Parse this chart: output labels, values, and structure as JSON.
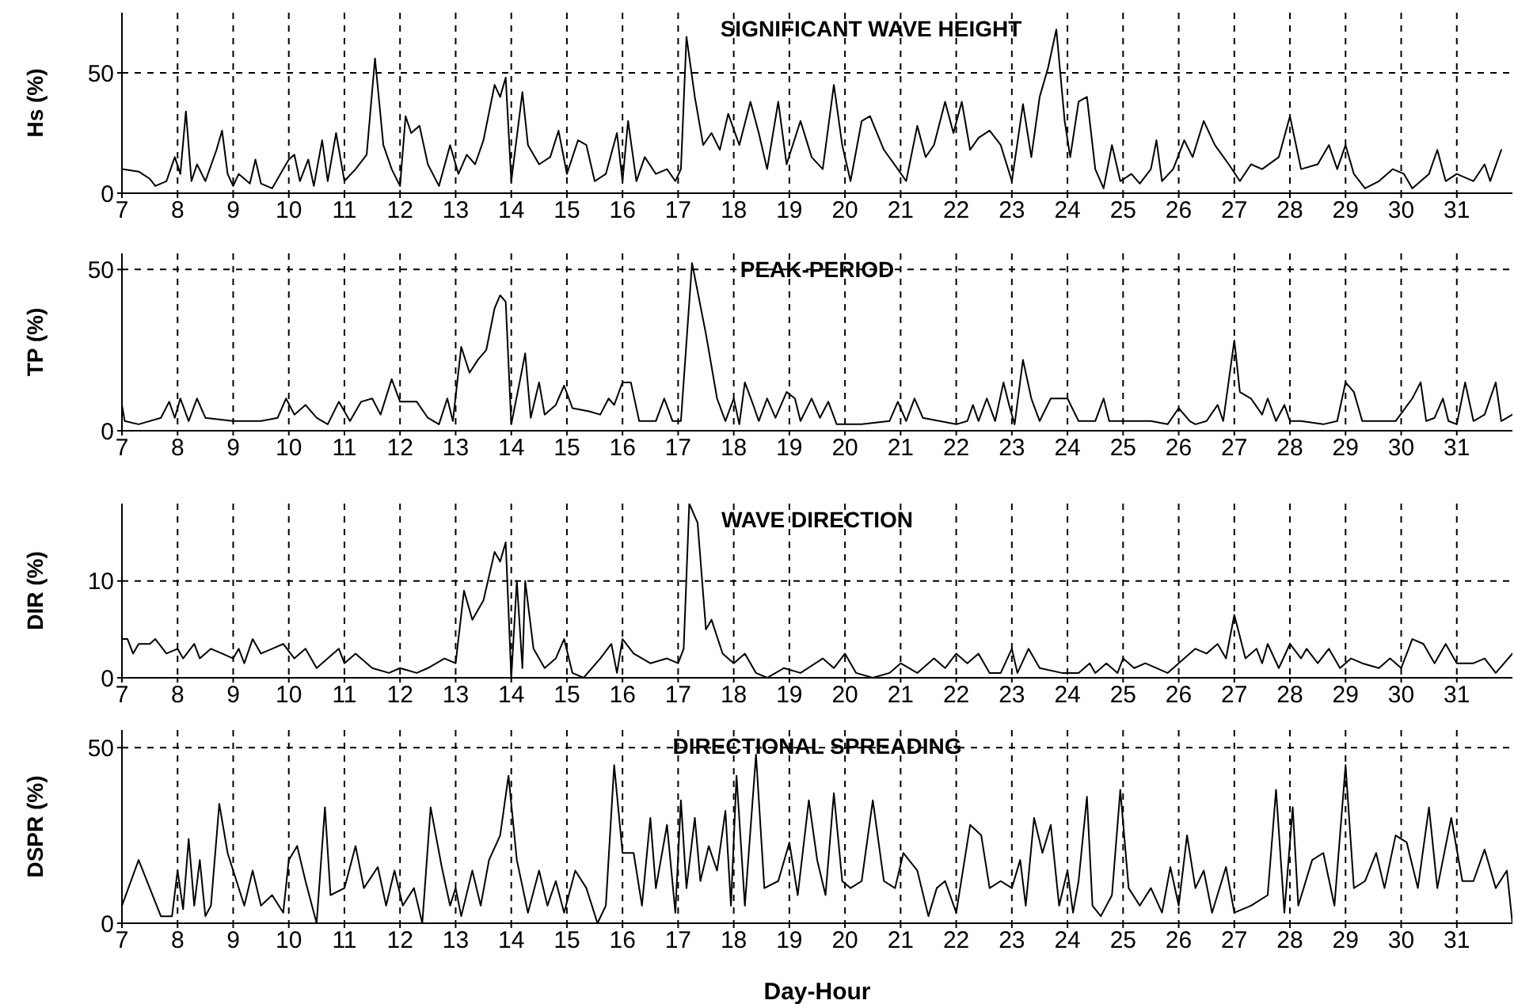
{
  "chart_data": [
    {
      "type": "line",
      "title": "SIGNIFICANT WAVE HEIGHT",
      "ylabel": "Hs (%)",
      "color": "#000000",
      "grid": true,
      "marker": "none",
      "xlim": [
        7,
        32
      ],
      "xticks": [
        7,
        8,
        9,
        10,
        11,
        12,
        13,
        14,
        15,
        16,
        17,
        18,
        19,
        20,
        21,
        22,
        23,
        24,
        25,
        26,
        27,
        28,
        29,
        30,
        31
      ],
      "ylim": [
        0,
        75
      ],
      "yticks": [
        0,
        50
      ],
      "x": [
        7.0,
        7.3,
        7.5,
        7.6,
        7.8,
        7.95,
        8.05,
        8.15,
        8.25,
        8.35,
        8.5,
        8.7,
        8.8,
        8.9,
        9.0,
        9.1,
        9.3,
        9.4,
        9.5,
        9.7,
        9.9,
        10.0,
        10.1,
        10.2,
        10.35,
        10.45,
        10.6,
        10.7,
        10.85,
        11.0,
        11.2,
        11.4,
        11.55,
        11.7,
        11.85,
        12.0,
        12.1,
        12.2,
        12.35,
        12.5,
        12.7,
        12.9,
        13.05,
        13.2,
        13.35,
        13.5,
        13.7,
        13.8,
        13.9,
        14.0,
        14.2,
        14.3,
        14.5,
        14.7,
        14.85,
        15.0,
        15.2,
        15.35,
        15.5,
        15.7,
        15.9,
        16.0,
        16.1,
        16.25,
        16.4,
        16.6,
        16.8,
        16.95,
        17.05,
        17.15,
        17.3,
        17.45,
        17.6,
        17.75,
        17.9,
        18.1,
        18.3,
        18.45,
        18.6,
        18.8,
        18.95,
        19.2,
        19.4,
        19.6,
        19.8,
        19.95,
        20.1,
        20.3,
        20.45,
        20.7,
        20.95,
        21.1,
        21.3,
        21.45,
        21.6,
        21.8,
        21.95,
        22.1,
        22.25,
        22.4,
        22.6,
        22.8,
        23.0,
        23.2,
        23.35,
        23.5,
        23.65,
        23.8,
        23.95,
        24.05,
        24.2,
        24.35,
        24.5,
        24.65,
        24.8,
        24.95,
        25.15,
        25.3,
        25.5,
        25.6,
        25.7,
        25.9,
        26.1,
        26.25,
        26.45,
        26.65,
        26.9,
        27.1,
        27.3,
        27.5,
        27.8,
        28.0,
        28.2,
        28.5,
        28.7,
        28.85,
        29.0,
        29.15,
        29.35,
        29.6,
        29.85,
        30.05,
        30.2,
        30.5,
        30.65,
        30.8,
        31.0,
        31.3,
        31.5,
        31.6,
        31.8
      ],
      "values": [
        10,
        9,
        6,
        3,
        5,
        15,
        8,
        34,
        5,
        12,
        5,
        18,
        26,
        8,
        3,
        8,
        4,
        14,
        4,
        2,
        10,
        14,
        16,
        5,
        14,
        3,
        22,
        5,
        25,
        5,
        10,
        16,
        56,
        20,
        10,
        3,
        32,
        25,
        28,
        12,
        3,
        20,
        8,
        16,
        12,
        22,
        45,
        40,
        48,
        5,
        42,
        20,
        12,
        15,
        26,
        8,
        22,
        20,
        5,
        8,
        25,
        5,
        30,
        5,
        15,
        8,
        10,
        5,
        10,
        65,
        40,
        20,
        25,
        18,
        33,
        20,
        38,
        25,
        10,
        38,
        12,
        30,
        15,
        10,
        45,
        20,
        5,
        30,
        32,
        18,
        10,
        5,
        28,
        15,
        20,
        38,
        25,
        38,
        18,
        23,
        26,
        20,
        5,
        37,
        15,
        40,
        52,
        68,
        30,
        15,
        38,
        40,
        10,
        2,
        20,
        5,
        8,
        4,
        10,
        22,
        5,
        10,
        22,
        15,
        30,
        20,
        12,
        5,
        12,
        10,
        15,
        32,
        10,
        12,
        20,
        10,
        20,
        8,
        2,
        5,
        10,
        8,
        2,
        8,
        18,
        5,
        8,
        5,
        12,
        5,
        18
      ]
    },
    {
      "type": "line",
      "title": "PEAK-PERIOD",
      "ylabel": "TP (%)",
      "color": "#000000",
      "grid": true,
      "marker": "none",
      "xlim": [
        7,
        32
      ],
      "xticks": [
        7,
        8,
        9,
        10,
        11,
        12,
        13,
        14,
        15,
        16,
        17,
        18,
        19,
        20,
        21,
        22,
        23,
        24,
        25,
        26,
        27,
        28,
        29,
        30,
        31
      ],
      "ylim": [
        0,
        55
      ],
      "yticks": [
        0,
        50
      ],
      "x": [
        7.0,
        7.05,
        7.3,
        7.7,
        7.85,
        7.95,
        8.05,
        8.2,
        8.35,
        8.5,
        9.0,
        9.5,
        9.8,
        9.95,
        10.1,
        10.3,
        10.5,
        10.7,
        10.9,
        11.1,
        11.3,
        11.5,
        11.65,
        11.85,
        12.0,
        12.3,
        12.5,
        12.7,
        12.85,
        12.95,
        13.1,
        13.25,
        13.4,
        13.55,
        13.7,
        13.8,
        13.9,
        14.0,
        14.15,
        14.25,
        14.35,
        14.5,
        14.6,
        14.8,
        14.95,
        15.1,
        15.4,
        15.6,
        15.75,
        15.85,
        16.0,
        16.15,
        16.3,
        16.6,
        16.75,
        16.9,
        17.05,
        17.25,
        17.5,
        17.7,
        17.85,
        18.0,
        18.1,
        18.2,
        18.35,
        18.45,
        18.6,
        18.75,
        18.95,
        19.1,
        19.2,
        19.4,
        19.55,
        19.7,
        19.85,
        20.3,
        20.8,
        20.95,
        21.1,
        21.25,
        21.4,
        21.7,
        22.0,
        22.2,
        22.3,
        22.4,
        22.55,
        22.7,
        22.85,
        22.95,
        23.05,
        23.2,
        23.35,
        23.5,
        23.7,
        24.0,
        24.2,
        24.5,
        24.65,
        24.75,
        25.2,
        25.5,
        25.8,
        26.0,
        26.2,
        26.3,
        26.5,
        26.7,
        26.8,
        27.0,
        27.1,
        27.3,
        27.5,
        27.6,
        27.75,
        27.9,
        28.0,
        28.2,
        28.6,
        28.85,
        29.0,
        29.15,
        29.3,
        29.6,
        29.9,
        30.2,
        30.35,
        30.45,
        30.6,
        30.75,
        30.85,
        31.0,
        31.15,
        31.3,
        31.5,
        31.7,
        31.8,
        32.0
      ],
      "values": [
        8,
        3,
        2,
        4,
        9,
        4,
        10,
        3,
        10,
        4,
        3,
        3,
        4,
        10,
        5,
        8,
        4,
        2,
        9,
        3,
        9,
        10,
        5,
        16,
        9,
        9,
        4,
        2,
        10,
        3,
        26,
        18,
        22,
        25,
        38,
        42,
        40,
        2,
        15,
        24,
        4,
        15,
        5,
        8,
        14,
        7,
        6,
        5,
        10,
        8,
        15,
        15,
        3,
        3,
        10,
        3,
        3,
        52,
        30,
        10,
        3,
        10,
        2,
        15,
        8,
        3,
        10,
        4,
        12,
        10,
        3,
        10,
        4,
        9,
        2,
        2,
        3,
        9,
        3,
        10,
        4,
        3,
        2,
        3,
        8,
        3,
        10,
        3,
        15,
        8,
        2,
        22,
        10,
        3,
        10,
        10,
        3,
        3,
        10,
        3,
        3,
        3,
        2,
        7,
        3,
        2,
        3,
        8,
        3,
        28,
        12,
        10,
        5,
        10,
        3,
        8,
        3,
        3,
        2,
        3,
        15,
        12,
        3,
        3,
        3,
        10,
        15,
        3,
        4,
        10,
        3,
        2,
        15,
        3,
        5,
        15,
        3,
        5
      ]
    },
    {
      "type": "line",
      "title": "WAVE DIRECTION",
      "ylabel": "DIR (%)",
      "color": "#000000",
      "grid": true,
      "marker": "none",
      "xlim": [
        7,
        32
      ],
      "xticks": [
        7,
        8,
        9,
        10,
        11,
        12,
        13,
        14,
        15,
        16,
        17,
        18,
        19,
        20,
        21,
        22,
        23,
        24,
        25,
        26,
        27,
        28,
        29,
        30,
        31
      ],
      "ylim": [
        0,
        18
      ],
      "yticks": [
        0,
        10
      ],
      "x": [
        7.0,
        7.1,
        7.2,
        7.3,
        7.5,
        7.6,
        7.8,
        8.0,
        8.1,
        8.3,
        8.4,
        8.6,
        8.8,
        9.0,
        9.1,
        9.2,
        9.35,
        9.5,
        9.7,
        9.9,
        10.1,
        10.3,
        10.5,
        10.7,
        10.9,
        11.0,
        11.2,
        11.5,
        11.8,
        12.0,
        12.3,
        12.5,
        12.8,
        13.0,
        13.15,
        13.3,
        13.5,
        13.7,
        13.8,
        13.9,
        14.0,
        14.1,
        14.2,
        14.25,
        14.4,
        14.6,
        14.8,
        14.95,
        15.1,
        15.3,
        15.6,
        15.8,
        15.9,
        16.0,
        16.2,
        16.5,
        16.8,
        17.0,
        17.1,
        17.2,
        17.35,
        17.5,
        17.6,
        17.8,
        18.0,
        18.2,
        18.4,
        18.6,
        18.9,
        19.2,
        19.6,
        19.8,
        20.0,
        20.2,
        20.5,
        20.8,
        21.0,
        21.3,
        21.6,
        21.8,
        22.0,
        22.2,
        22.4,
        22.6,
        22.8,
        23.0,
        23.1,
        23.3,
        23.5,
        23.9,
        24.2,
        24.4,
        24.5,
        24.7,
        24.9,
        25.0,
        25.2,
        25.4,
        25.8,
        26.1,
        26.3,
        26.5,
        26.7,
        26.85,
        27.0,
        27.2,
        27.4,
        27.5,
        27.6,
        27.8,
        28.0,
        28.2,
        28.3,
        28.5,
        28.7,
        28.9,
        29.1,
        29.3,
        29.6,
        29.8,
        30.0,
        30.2,
        30.4,
        30.6,
        30.8,
        31.0,
        31.3,
        31.5,
        31.7,
        32.0
      ],
      "values": [
        4,
        4,
        2.5,
        3.5,
        3.5,
        4,
        2.5,
        3,
        2,
        3.5,
        2,
        3,
        2.5,
        2,
        3,
        1.5,
        4,
        2.5,
        3,
        3.5,
        2,
        3,
        1,
        2,
        3,
        1.5,
        2.5,
        1,
        0.5,
        1,
        0.5,
        1,
        2,
        1.5,
        9,
        6,
        8,
        13,
        12,
        14,
        0,
        10,
        1,
        10,
        3,
        1,
        2,
        4,
        0.5,
        0,
        2,
        3.5,
        0.5,
        4,
        2.5,
        1.5,
        2,
        1.5,
        3,
        18,
        16,
        5,
        6,
        2.5,
        1.5,
        2.5,
        0.5,
        0,
        1,
        0.5,
        2,
        1,
        2.5,
        0.5,
        0,
        0.5,
        1.5,
        0.5,
        2,
        1,
        2.5,
        1.5,
        2.5,
        0.5,
        0.5,
        3,
        0.5,
        3,
        1,
        0.5,
        0.5,
        1.5,
        0.5,
        1.5,
        0.5,
        2,
        1,
        1.5,
        0.5,
        2,
        3,
        2.5,
        3.5,
        2,
        6.5,
        2,
        3,
        1.5,
        3.5,
        1,
        3.5,
        2,
        3,
        1.5,
        3,
        1,
        2,
        1.5,
        1,
        2,
        1,
        4,
        3.5,
        1.5,
        3.5,
        1.5,
        1.5,
        2,
        0.5,
        2.5
      ]
    },
    {
      "type": "line",
      "title": "DIRECTIONAL SPREADING",
      "ylabel": "DSPR (%)",
      "xlabel": "Day-Hour",
      "color": "#000000",
      "grid": true,
      "marker": "none",
      "xlim": [
        7,
        32
      ],
      "xticks": [
        7,
        8,
        9,
        10,
        11,
        12,
        13,
        14,
        15,
        16,
        17,
        18,
        19,
        20,
        21,
        22,
        23,
        24,
        25,
        26,
        27,
        28,
        29,
        30,
        31
      ],
      "ylim": [
        0,
        55
      ],
      "yticks": [
        0,
        50
      ],
      "x": [
        7.0,
        7.3,
        7.5,
        7.7,
        7.9,
        8.0,
        8.1,
        8.2,
        8.3,
        8.4,
        8.5,
        8.6,
        8.75,
        8.9,
        9.0,
        9.2,
        9.35,
        9.5,
        9.7,
        9.9,
        10.0,
        10.15,
        10.3,
        10.5,
        10.65,
        10.75,
        11.0,
        11.2,
        11.35,
        11.6,
        11.75,
        11.9,
        12.05,
        12.25,
        12.4,
        12.55,
        12.75,
        12.9,
        13.0,
        13.1,
        13.3,
        13.45,
        13.6,
        13.8,
        13.95,
        14.1,
        14.3,
        14.5,
        14.65,
        14.8,
        14.95,
        15.15,
        15.35,
        15.55,
        15.7,
        15.85,
        16.0,
        16.2,
        16.35,
        16.5,
        16.6,
        16.8,
        16.95,
        17.05,
        17.15,
        17.3,
        17.4,
        17.55,
        17.7,
        17.85,
        17.95,
        18.05,
        18.2,
        18.4,
        18.55,
        18.8,
        19.0,
        19.15,
        19.35,
        19.5,
        19.65,
        19.8,
        19.95,
        20.1,
        20.3,
        20.5,
        20.7,
        20.9,
        21.05,
        21.3,
        21.5,
        21.65,
        21.8,
        22.0,
        22.25,
        22.45,
        22.6,
        22.8,
        23.0,
        23.15,
        23.25,
        23.4,
        23.55,
        23.7,
        23.85,
        24.0,
        24.1,
        24.2,
        24.35,
        24.45,
        24.6,
        24.8,
        24.95,
        25.1,
        25.3,
        25.5,
        25.7,
        25.85,
        26.0,
        26.15,
        26.3,
        26.45,
        26.6,
        26.85,
        27.0,
        27.3,
        27.6,
        27.75,
        27.9,
        28.05,
        28.15,
        28.4,
        28.6,
        28.8,
        29.0,
        29.15,
        29.35,
        29.55,
        29.7,
        29.9,
        30.1,
        30.3,
        30.5,
        30.65,
        30.9,
        31.1,
        31.3,
        31.5,
        31.7,
        31.9,
        32.0
      ],
      "values": [
        5,
        18,
        10,
        2,
        2,
        15,
        4,
        24,
        5,
        18,
        2,
        5,
        34,
        20,
        15,
        5,
        15,
        5,
        8,
        3,
        18,
        22,
        12,
        0,
        33,
        8,
        10,
        22,
        10,
        16,
        5,
        15,
        5,
        10,
        0,
        33,
        16,
        5,
        10,
        2,
        15,
        5,
        18,
        25,
        42,
        18,
        3,
        15,
        5,
        12,
        3,
        15,
        10,
        0,
        5,
        45,
        20,
        20,
        5,
        30,
        10,
        28,
        3,
        35,
        10,
        30,
        12,
        22,
        15,
        32,
        5,
        42,
        5,
        48,
        10,
        12,
        23,
        8,
        35,
        18,
        8,
        37,
        12,
        10,
        12,
        35,
        12,
        10,
        20,
        15,
        2,
        10,
        12,
        3,
        28,
        25,
        10,
        12,
        10,
        18,
        5,
        30,
        20,
        28,
        5,
        15,
        3,
        12,
        36,
        5,
        2,
        8,
        38,
        10,
        5,
        10,
        3,
        16,
        5,
        25,
        10,
        15,
        3,
        16,
        3,
        5,
        8,
        38,
        3,
        33,
        5,
        18,
        20,
        5,
        45,
        10,
        12,
        20,
        10,
        25,
        23,
        10,
        33,
        10,
        30,
        12,
        12,
        21,
        10,
        15,
        0
      ]
    }
  ]
}
